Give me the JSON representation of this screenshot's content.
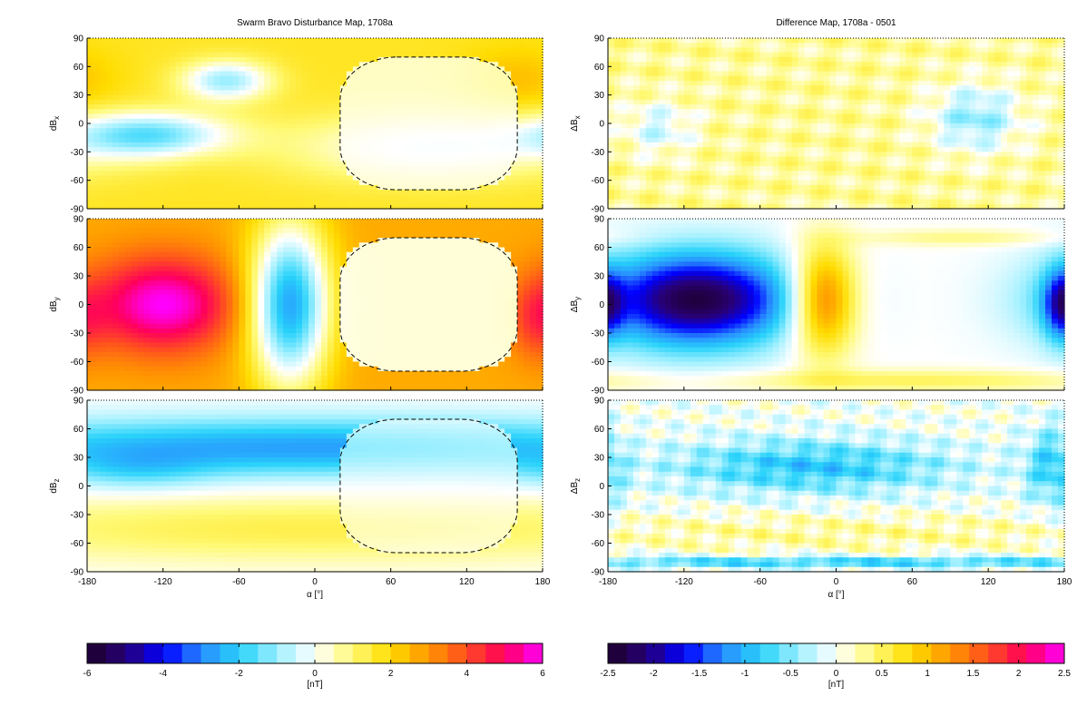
{
  "chart_data": [
    {
      "type": "heatmap",
      "title": "Swarm Bravo Disturbance Map, 1708a",
      "panels": [
        {
          "ylabel_main": "dB",
          "ylabel_sub": "x"
        },
        {
          "ylabel_main": "dB",
          "ylabel_sub": "y"
        },
        {
          "ylabel_main": "dB",
          "ylabel_sub": "z"
        }
      ],
      "xlabel": "α [°]",
      "xlim": [
        -180,
        180
      ],
      "ylim": [
        -90,
        90
      ],
      "xticks": [
        -180,
        -120,
        -60,
        0,
        60,
        120,
        180
      ],
      "yticks": [
        90,
        60,
        30,
        0,
        -30,
        -60,
        -90
      ],
      "grid": false,
      "colorbar": {
        "label": "[nT]",
        "range": [
          -6,
          6
        ],
        "ticks": [
          -6,
          -4,
          -2,
          0,
          2,
          4,
          6
        ]
      },
      "dashed_contour": {
        "alpha_range": [
          20,
          160
        ],
        "lat_range": [
          -70,
          70
        ]
      }
    },
    {
      "type": "heatmap",
      "title": "Difference Map, 1708a - 0501",
      "panels": [
        {
          "ylabel_main": "ΔB",
          "ylabel_sub": "x"
        },
        {
          "ylabel_main": "ΔB",
          "ylabel_sub": "y"
        },
        {
          "ylabel_main": "ΔB",
          "ylabel_sub": "z"
        }
      ],
      "xlabel": "α [°]",
      "xlim": [
        -180,
        180
      ],
      "ylim": [
        -90,
        90
      ],
      "xticks": [
        -180,
        -120,
        -60,
        0,
        60,
        120,
        180
      ],
      "yticks": [
        90,
        60,
        30,
        0,
        -30,
        -60,
        -90
      ],
      "grid": false,
      "colorbar": {
        "label": "[nT]",
        "range": [
          -2.5,
          2.5
        ],
        "ticks": [
          -2.5,
          -2,
          -1.5,
          -1,
          -0.5,
          0,
          0.5,
          1,
          1.5,
          2,
          2.5
        ]
      }
    }
  ]
}
